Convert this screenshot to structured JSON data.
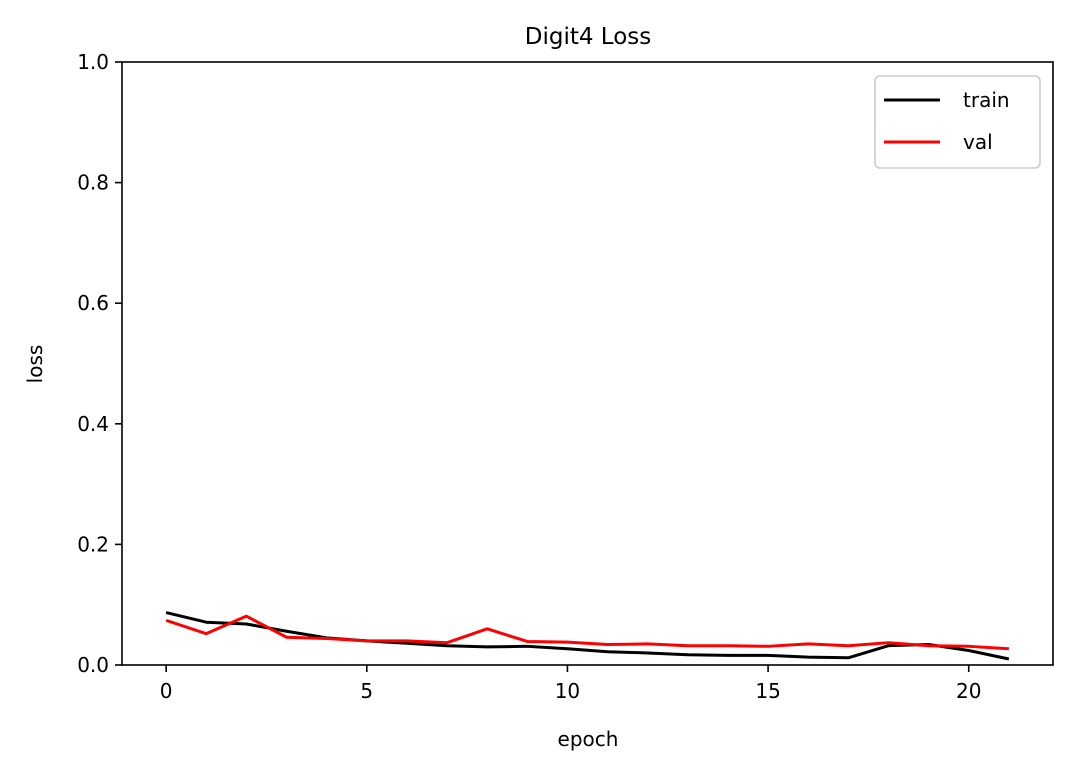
{
  "chart_data": {
    "type": "line",
    "title": "Digit4 Loss",
    "xlabel": "epoch",
    "ylabel": "loss",
    "xlim": [
      -1.1,
      22.1
    ],
    "ylim": [
      0.0,
      1.0
    ],
    "xticks": [
      0,
      5,
      10,
      15,
      20
    ],
    "xtick_labels": [
      "0",
      "5",
      "10",
      "15",
      "20"
    ],
    "yticks": [
      0.0,
      0.2,
      0.4,
      0.6,
      0.8,
      1.0
    ],
    "ytick_labels": [
      "0.0",
      "0.2",
      "0.4",
      "0.6",
      "0.8",
      "1.0"
    ],
    "grid": false,
    "legend_position": "top-right",
    "x": [
      0,
      1,
      2,
      3,
      4,
      5,
      6,
      7,
      8,
      9,
      10,
      11,
      12,
      13,
      14,
      15,
      16,
      17,
      18,
      19,
      20,
      21
    ],
    "series": [
      {
        "name": "train",
        "color": "#000000",
        "values": [
          0.087,
          0.071,
          0.068,
          0.056,
          0.045,
          0.04,
          0.036,
          0.032,
          0.03,
          0.031,
          0.027,
          0.022,
          0.02,
          0.017,
          0.016,
          0.016,
          0.013,
          0.012,
          0.032,
          0.034,
          0.024,
          0.01
        ]
      },
      {
        "name": "val",
        "color": "#ff0000",
        "values": [
          0.074,
          0.052,
          0.081,
          0.046,
          0.044,
          0.04,
          0.04,
          0.037,
          0.06,
          0.039,
          0.038,
          0.034,
          0.035,
          0.032,
          0.032,
          0.031,
          0.035,
          0.032,
          0.037,
          0.032,
          0.031,
          0.027
        ]
      }
    ]
  }
}
